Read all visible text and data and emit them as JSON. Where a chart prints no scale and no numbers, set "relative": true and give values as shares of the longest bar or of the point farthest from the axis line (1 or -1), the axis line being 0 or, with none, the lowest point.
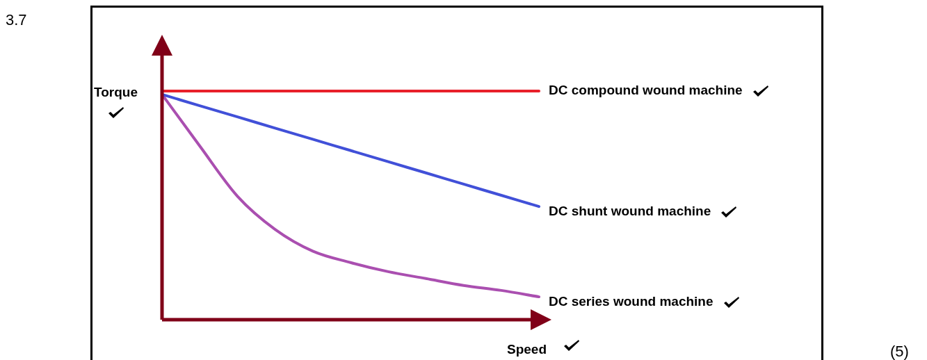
{
  "chart_data": {
    "type": "line",
    "relative": true,
    "xlabel": "Speed",
    "ylabel": "Torque",
    "legend": false,
    "marker": "none",
    "categories": [
      null,
      null,
      null,
      null,
      null,
      null,
      null,
      null,
      null,
      null,
      null
    ],
    "series": [
      {
        "name": "DC compound wound machine",
        "color": "#e8202a",
        "values": [
          1,
          1,
          1,
          1,
          1,
          1,
          1,
          1,
          1,
          1,
          1
        ]
      },
      {
        "name": "DC shunt wound machine",
        "color": "#4150d8",
        "values": [
          0.985,
          0.936,
          0.887,
          0.838,
          0.789,
          0.74,
          0.691,
          0.642,
          0.593,
          0.544,
          0.495
        ]
      },
      {
        "name": "DC series wound machine",
        "color": "#aa4fb0",
        "values": [
          0.985,
          0.76,
          0.54,
          0.395,
          0.3,
          0.25,
          0.21,
          0.18,
          0.15,
          0.128,
          0.1
        ]
      }
    ],
    "annotations": [
      "3.7",
      "(5)"
    ]
  }
}
